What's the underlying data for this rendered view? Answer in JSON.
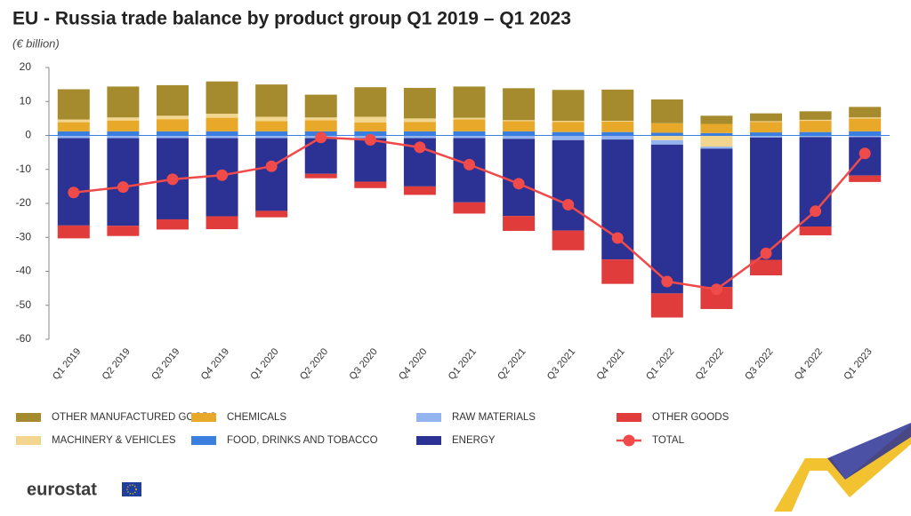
{
  "brand": "eurostat",
  "chart_data": {
    "type": "bar",
    "stacked": true,
    "title": "EU - Russia trade balance by product group Q1 2019 – Q1 2023",
    "subtitle": "(€ billion)",
    "categories": [
      "Q1 2019",
      "Q2 2019",
      "Q3 2019",
      "Q4 2019",
      "Q1 2020",
      "Q2 2020",
      "Q3 2020",
      "Q4 2020",
      "Q1 2021",
      "Q2 2021",
      "Q3 2021",
      "Q4 2021",
      "Q1 2022",
      "Q2 2022",
      "Q3 2022",
      "Q4 2022",
      "Q1 2023"
    ],
    "ylim": [
      -60,
      20
    ],
    "yticks": [
      20,
      10,
      0,
      -10,
      -20,
      -30,
      -40,
      -50,
      -60
    ],
    "grid": false,
    "series": [
      {
        "name": "OTHER MANUFACTURED GOODS",
        "color": "#a68b2e",
        "values": [
          8.9,
          9.1,
          9.0,
          9.5,
          9.5,
          6.7,
          8.7,
          9.0,
          9.2,
          9.4,
          9.1,
          9.2,
          7.0,
          2.4,
          2.3,
          2.5,
          3.1
        ]
      },
      {
        "name": "CHEMICALS",
        "color": "#e8a82a",
        "values": [
          2.7,
          3.2,
          3.6,
          4.0,
          3.0,
          3.3,
          2.6,
          2.8,
          3.5,
          3.0,
          3.0,
          3.1,
          2.8,
          2.7,
          3.1,
          3.3,
          3.8
        ]
      },
      {
        "name": "RAW MATERIALS",
        "color": "#93b4ee",
        "values": [
          -0.8,
          -0.8,
          -0.8,
          -0.8,
          -0.8,
          -0.8,
          -0.8,
          -0.8,
          -0.8,
          -1.0,
          -1.4,
          -1.2,
          -1.3,
          -0.6,
          -0.6,
          -0.5,
          -0.5
        ]
      },
      {
        "name": "OTHER GOODS",
        "color": "#e03c3c",
        "values": [
          -3.8,
          -3.0,
          -3.0,
          -3.8,
          -1.9,
          -1.3,
          -1.9,
          -2.5,
          -3.3,
          -4.4,
          -5.8,
          -7.2,
          -7.1,
          -6.5,
          -4.6,
          -2.6,
          -1.9
        ]
      },
      {
        "name": "MACHINERY & VEHICLES",
        "color": "#f2d690",
        "values": [
          0.8,
          0.9,
          1.0,
          1.2,
          1.3,
          0.8,
          1.7,
          1.0,
          0.5,
          0.3,
          0.3,
          0.2,
          -1.4,
          -3.3,
          0.2,
          0.3,
          0.3
        ]
      },
      {
        "name": "FOOD, DRINKS AND TOBACCO",
        "color": "#3a7fe0",
        "values": [
          1.2,
          1.2,
          1.2,
          1.2,
          1.2,
          1.2,
          1.2,
          1.2,
          1.2,
          1.2,
          1.0,
          1.0,
          0.8,
          0.7,
          0.9,
          1.0,
          1.2
        ]
      },
      {
        "name": "ENERGY",
        "color": "#2b3294",
        "values": [
          -25.7,
          -25.8,
          -23.9,
          -23.0,
          -21.4,
          -10.5,
          -12.8,
          -14.2,
          -18.9,
          -22.7,
          -26.6,
          -35.3,
          -43.8,
          -40.7,
          -36.0,
          -26.3,
          -11.3
        ]
      },
      {
        "name": "TOTAL",
        "color": "#f04a4a",
        "kind": "line",
        "values": [
          -16.8,
          -15.2,
          -12.9,
          -11.7,
          -9.1,
          -0.6,
          -1.3,
          -3.5,
          -8.6,
          -14.2,
          -20.4,
          -30.2,
          -43.0,
          -45.3,
          -34.7,
          -22.3,
          -5.3
        ]
      }
    ]
  }
}
